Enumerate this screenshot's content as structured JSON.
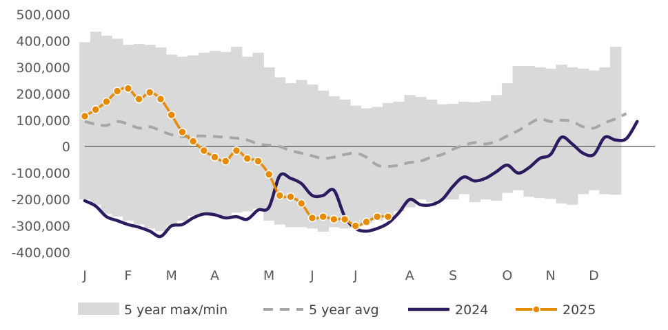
{
  "chart_data": {
    "type": "line",
    "title": "",
    "xlabel": "",
    "ylabel": "",
    "ylim": [
      -400000,
      500000
    ],
    "y_ticks": [
      "500,000",
      "400,000",
      "300,000",
      "200,000",
      "100,000",
      "0",
      "-100,000",
      "-200,000",
      "-300,000",
      "-400,000"
    ],
    "y_tick_values": [
      500000,
      400000,
      300000,
      200000,
      100000,
      0,
      -100000,
      -200000,
      -300000,
      -400000
    ],
    "x_unit": "week",
    "x_range": [
      1,
      53
    ],
    "month_labels": [
      "J",
      "F",
      "M",
      "A",
      "M",
      "J",
      "J",
      "A",
      "S",
      "O",
      "N",
      "D"
    ],
    "month_label_weeks": [
      1,
      5,
      9,
      13,
      18,
      22,
      26,
      31,
      35,
      40,
      44,
      48
    ],
    "legend": [
      "5 year max/min",
      "5 year avg",
      "2024",
      "2025"
    ],
    "legend_position": "bottom",
    "colors": {
      "band": "#d9d9d9",
      "avg": "#a6a6a6",
      "y2024": "#2e1a5e",
      "y2025": "#e68a00",
      "zero_line": "#595959"
    },
    "series": [
      {
        "name": "5 year max/min",
        "kind": "band",
        "weeks": [
          1,
          2,
          3,
          4,
          5,
          6,
          7,
          8,
          9,
          10,
          11,
          12,
          13,
          14,
          15,
          16,
          17,
          18,
          19,
          20,
          21,
          22,
          23,
          24,
          25,
          26,
          27,
          28,
          29,
          30,
          31,
          32,
          33,
          34,
          35,
          36,
          37,
          38,
          39,
          40,
          41,
          42,
          43,
          44,
          45,
          46,
          47,
          48,
          49,
          50,
          51,
          52,
          53
        ],
        "max": [
          395000,
          435000,
          420000,
          408000,
          385000,
          388000,
          385000,
          375000,
          348000,
          340000,
          345000,
          355000,
          362000,
          358000,
          378000,
          340000,
          355000,
          300000,
          262000,
          240000,
          252000,
          235000,
          212000,
          190000,
          178000,
          155000,
          145000,
          150000,
          165000,
          170000,
          195000,
          188000,
          178000,
          160000,
          162000,
          170000,
          168000,
          172000,
          195000,
          240000,
          305000,
          305000,
          300000,
          295000,
          310000,
          300000,
          295000,
          288000,
          300000,
          378000,
          null,
          null,
          null
        ],
        "min": [
          -200000,
          -220000,
          -255000,
          -265000,
          -280000,
          -295000,
          -310000,
          -320000,
          -300000,
          -280000,
          -262000,
          -255000,
          -262000,
          -265000,
          -250000,
          -245000,
          -235000,
          -280000,
          -295000,
          -305000,
          -305000,
          -310000,
          -322000,
          -305000,
          -310000,
          -300000,
          -290000,
          -280000,
          -270000,
          -245000,
          -230000,
          -200000,
          -210000,
          -200000,
          -200000,
          -180000,
          -210000,
          -200000,
          -205000,
          -175000,
          -165000,
          -190000,
          -195000,
          -198000,
          -215000,
          -220000,
          -180000,
          -165000,
          -180000,
          -182000,
          null,
          null,
          null
        ]
      },
      {
        "name": "5 year avg",
        "kind": "dashed",
        "weeks": [
          1,
          2,
          3,
          4,
          5,
          6,
          7,
          8,
          9,
          10,
          11,
          12,
          13,
          14,
          15,
          16,
          17,
          18,
          19,
          20,
          21,
          22,
          23,
          24,
          25,
          26,
          27,
          28,
          29,
          30,
          31,
          32,
          33,
          34,
          35,
          36,
          37,
          38,
          39,
          40,
          41,
          42,
          43,
          44,
          45,
          46,
          47,
          48,
          49,
          50,
          51,
          52,
          53
        ],
        "values": [
          95000,
          85000,
          80000,
          95000,
          85000,
          70000,
          75000,
          60000,
          45000,
          38000,
          40000,
          40000,
          38000,
          35000,
          32000,
          25000,
          10000,
          5000,
          0,
          -15000,
          -25000,
          -35000,
          -45000,
          -40000,
          -30000,
          -25000,
          -40000,
          -70000,
          -75000,
          -70000,
          -60000,
          -55000,
          -40000,
          -30000,
          -10000,
          5000,
          15000,
          10000,
          20000,
          40000,
          60000,
          85000,
          105000,
          95000,
          100000,
          95000,
          75000,
          70000,
          90000,
          105000,
          125000,
          null,
          null
        ]
      },
      {
        "name": "2024",
        "kind": "line",
        "weeks": [
          1,
          2,
          3,
          4,
          5,
          6,
          7,
          8,
          9,
          10,
          11,
          12,
          13,
          14,
          15,
          16,
          17,
          18,
          19,
          20,
          21,
          22,
          23,
          24,
          25,
          26,
          27,
          28,
          29,
          30,
          31,
          32,
          33,
          34,
          35,
          36,
          37,
          38,
          39,
          40,
          41,
          42,
          43,
          44,
          45,
          46,
          47,
          48,
          49,
          50,
          51,
          52,
          53
        ],
        "values": [
          -205000,
          -225000,
          -265000,
          -280000,
          -295000,
          -305000,
          -320000,
          -340000,
          -300000,
          -295000,
          -270000,
          -255000,
          -258000,
          -270000,
          -265000,
          -275000,
          -240000,
          -230000,
          -110000,
          -120000,
          -140000,
          -185000,
          -185000,
          -165000,
          -265000,
          -310000,
          -320000,
          -310000,
          -290000,
          -250000,
          -200000,
          -220000,
          -220000,
          -200000,
          -150000,
          -115000,
          -130000,
          -120000,
          -95000,
          -70000,
          -100000,
          -80000,
          -45000,
          -30000,
          35000,
          10000,
          -25000,
          -30000,
          35000,
          25000,
          30000,
          95000,
          null
        ]
      },
      {
        "name": "2025",
        "kind": "line-markers",
        "weeks": [
          1,
          2,
          3,
          4,
          5,
          6,
          7,
          8,
          9,
          10,
          11,
          12,
          13,
          14,
          15,
          16,
          17,
          18,
          19,
          20,
          21,
          22,
          23,
          24,
          25,
          26,
          27,
          28,
          29
        ],
        "values": [
          115000,
          140000,
          170000,
          210000,
          220000,
          180000,
          205000,
          180000,
          120000,
          55000,
          20000,
          -15000,
          -40000,
          -55000,
          -15000,
          -45000,
          -55000,
          -105000,
          -185000,
          -190000,
          -215000,
          -270000,
          -265000,
          -275000,
          -275000,
          -300000,
          -285000,
          -265000,
          -265000
        ]
      }
    ]
  }
}
